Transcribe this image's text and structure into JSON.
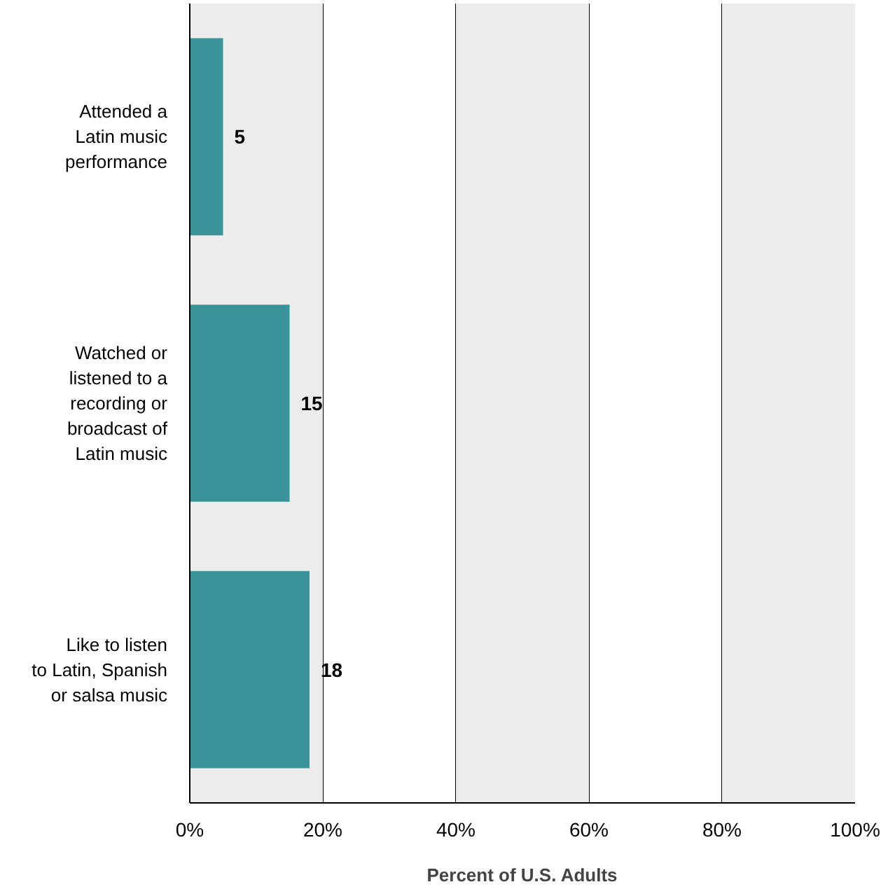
{
  "chart_data": {
    "type": "bar",
    "orientation": "horizontal",
    "categories": [
      "Attended a\nLatin music\nperformance",
      "Watched or\nlistened to a\nrecording or\nbroadcast of\nLatin music",
      "Like to listen\nto Latin, Spanish\nor salsa music"
    ],
    "values": [
      5,
      15,
      18
    ],
    "color": "#3a9399",
    "data_labels": true,
    "xlim": [
      0,
      100
    ],
    "xticks": [
      {
        "value": 0,
        "label": "0%"
      },
      {
        "value": 20,
        "label": "20%"
      },
      {
        "value": 40,
        "label": "40%"
      },
      {
        "value": 60,
        "label": "60%"
      },
      {
        "value": 80,
        "label": "80%"
      },
      {
        "value": 100,
        "label": "100%"
      }
    ],
    "xlabel": "Percent of U.S. Adults",
    "grid": "x",
    "bands": [
      {
        "axis": "x",
        "from": 0,
        "to": 20,
        "color": "#ececec"
      },
      {
        "axis": "x",
        "from": 40,
        "to": 60,
        "color": "#ececec"
      },
      {
        "axis": "x",
        "from": 80,
        "to": 100,
        "color": "#ececec"
      }
    ]
  }
}
